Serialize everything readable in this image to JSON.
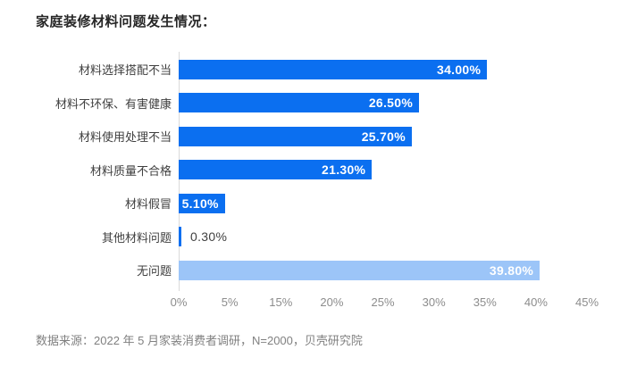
{
  "title": "家庭装修材料问题发生情况：",
  "footer": "数据来源：2022 年 5 月家装消费者调研，N=2000，贝壳研究院",
  "chart_data": {
    "type": "bar",
    "orientation": "horizontal",
    "title": "家庭装修材料问题发生情况：",
    "categories": [
      "材料选择搭配不当",
      "材料不环保、有害健康",
      "材料使用处理不当",
      "材料质量不合格",
      "材料假冒",
      "其他材料问题",
      "无问题"
    ],
    "values": [
      34.0,
      26.5,
      25.7,
      21.3,
      5.1,
      0.3,
      39.8
    ],
    "value_labels": [
      "34.00%",
      "26.50%",
      "25.70%",
      "21.30%",
      "5.10%",
      "0.30%",
      "39.80%"
    ],
    "bar_colors": [
      "#0b6ff0",
      "#0b6ff0",
      "#0b6ff0",
      "#0b6ff0",
      "#0b6ff0",
      "#0b6ff0",
      "#9cc5f8"
    ],
    "label_inside": [
      true,
      true,
      true,
      true,
      true,
      false,
      true
    ],
    "xlim": [
      0,
      45
    ],
    "x_tick_labels": [
      "0%",
      "5%",
      "15%",
      "20%",
      "25%",
      "30%",
      "35%",
      "40%",
      "45%"
    ],
    "grid": false,
    "legend": "none",
    "colors": {
      "primary_bar": "#0b6ff0",
      "muted_bar": "#9cc5f8",
      "axis_line": "#d9d9d9",
      "tick_text": "#8c8c8c",
      "category_text": "#404040",
      "title_text": "#262626",
      "footer_text": "#808080",
      "value_in_text": "#ffffff",
      "value_out_text": "#404040",
      "background": "#ffffff"
    }
  }
}
